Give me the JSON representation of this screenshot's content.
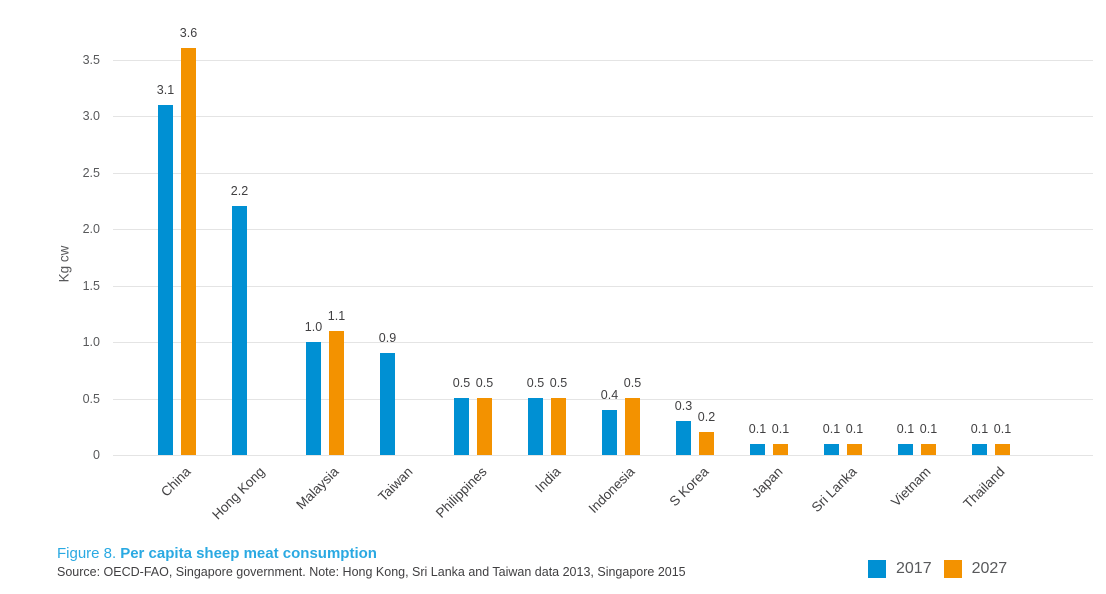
{
  "figure": {
    "label": "Figure 8.",
    "title": "Per capita sheep meat consumption",
    "source_note": "Source: OECD-FAO, Singapore government. Note: Hong Kong, Sri Lanka and Taiwan data 2013, Singapore 2015"
  },
  "colors": {
    "series_2017": "#0090d3",
    "series_2027": "#f39200",
    "caption_blue": "#2aa9e2",
    "gridline": "#e4e4e4",
    "axis_text": "#58595b",
    "value_text": "#414042"
  },
  "chart_data": {
    "type": "bar",
    "title": "Figure 8. Per capita sheep meat consumption",
    "xlabel": "",
    "ylabel": "Kg cw",
    "ylim": [
      0,
      3.5
    ],
    "yticks": [
      0,
      0.5,
      1.0,
      1.5,
      2.0,
      2.5,
      3.0,
      3.5
    ],
    "grid": true,
    "legend_position": "bottom-right",
    "value_labels": true,
    "categories": [
      "China",
      "Hong Kong",
      "Malaysia",
      "Taiwan",
      "Philippines",
      "India",
      "Indonesia",
      "S Korea",
      "Japan",
      "Sri Lanka",
      "Vietnam",
      "Thailand"
    ],
    "series": [
      {
        "name": "2017",
        "color": "#0090d3",
        "values": [
          3.1,
          2.2,
          1.0,
          0.9,
          0.5,
          0.5,
          0.4,
          0.3,
          0.1,
          0.1,
          0.1,
          0.1
        ]
      },
      {
        "name": "2027",
        "color": "#f39200",
        "values": [
          3.6,
          null,
          1.1,
          null,
          0.5,
          0.5,
          0.5,
          0.2,
          0.1,
          0.1,
          0.1,
          0.1
        ]
      }
    ]
  }
}
